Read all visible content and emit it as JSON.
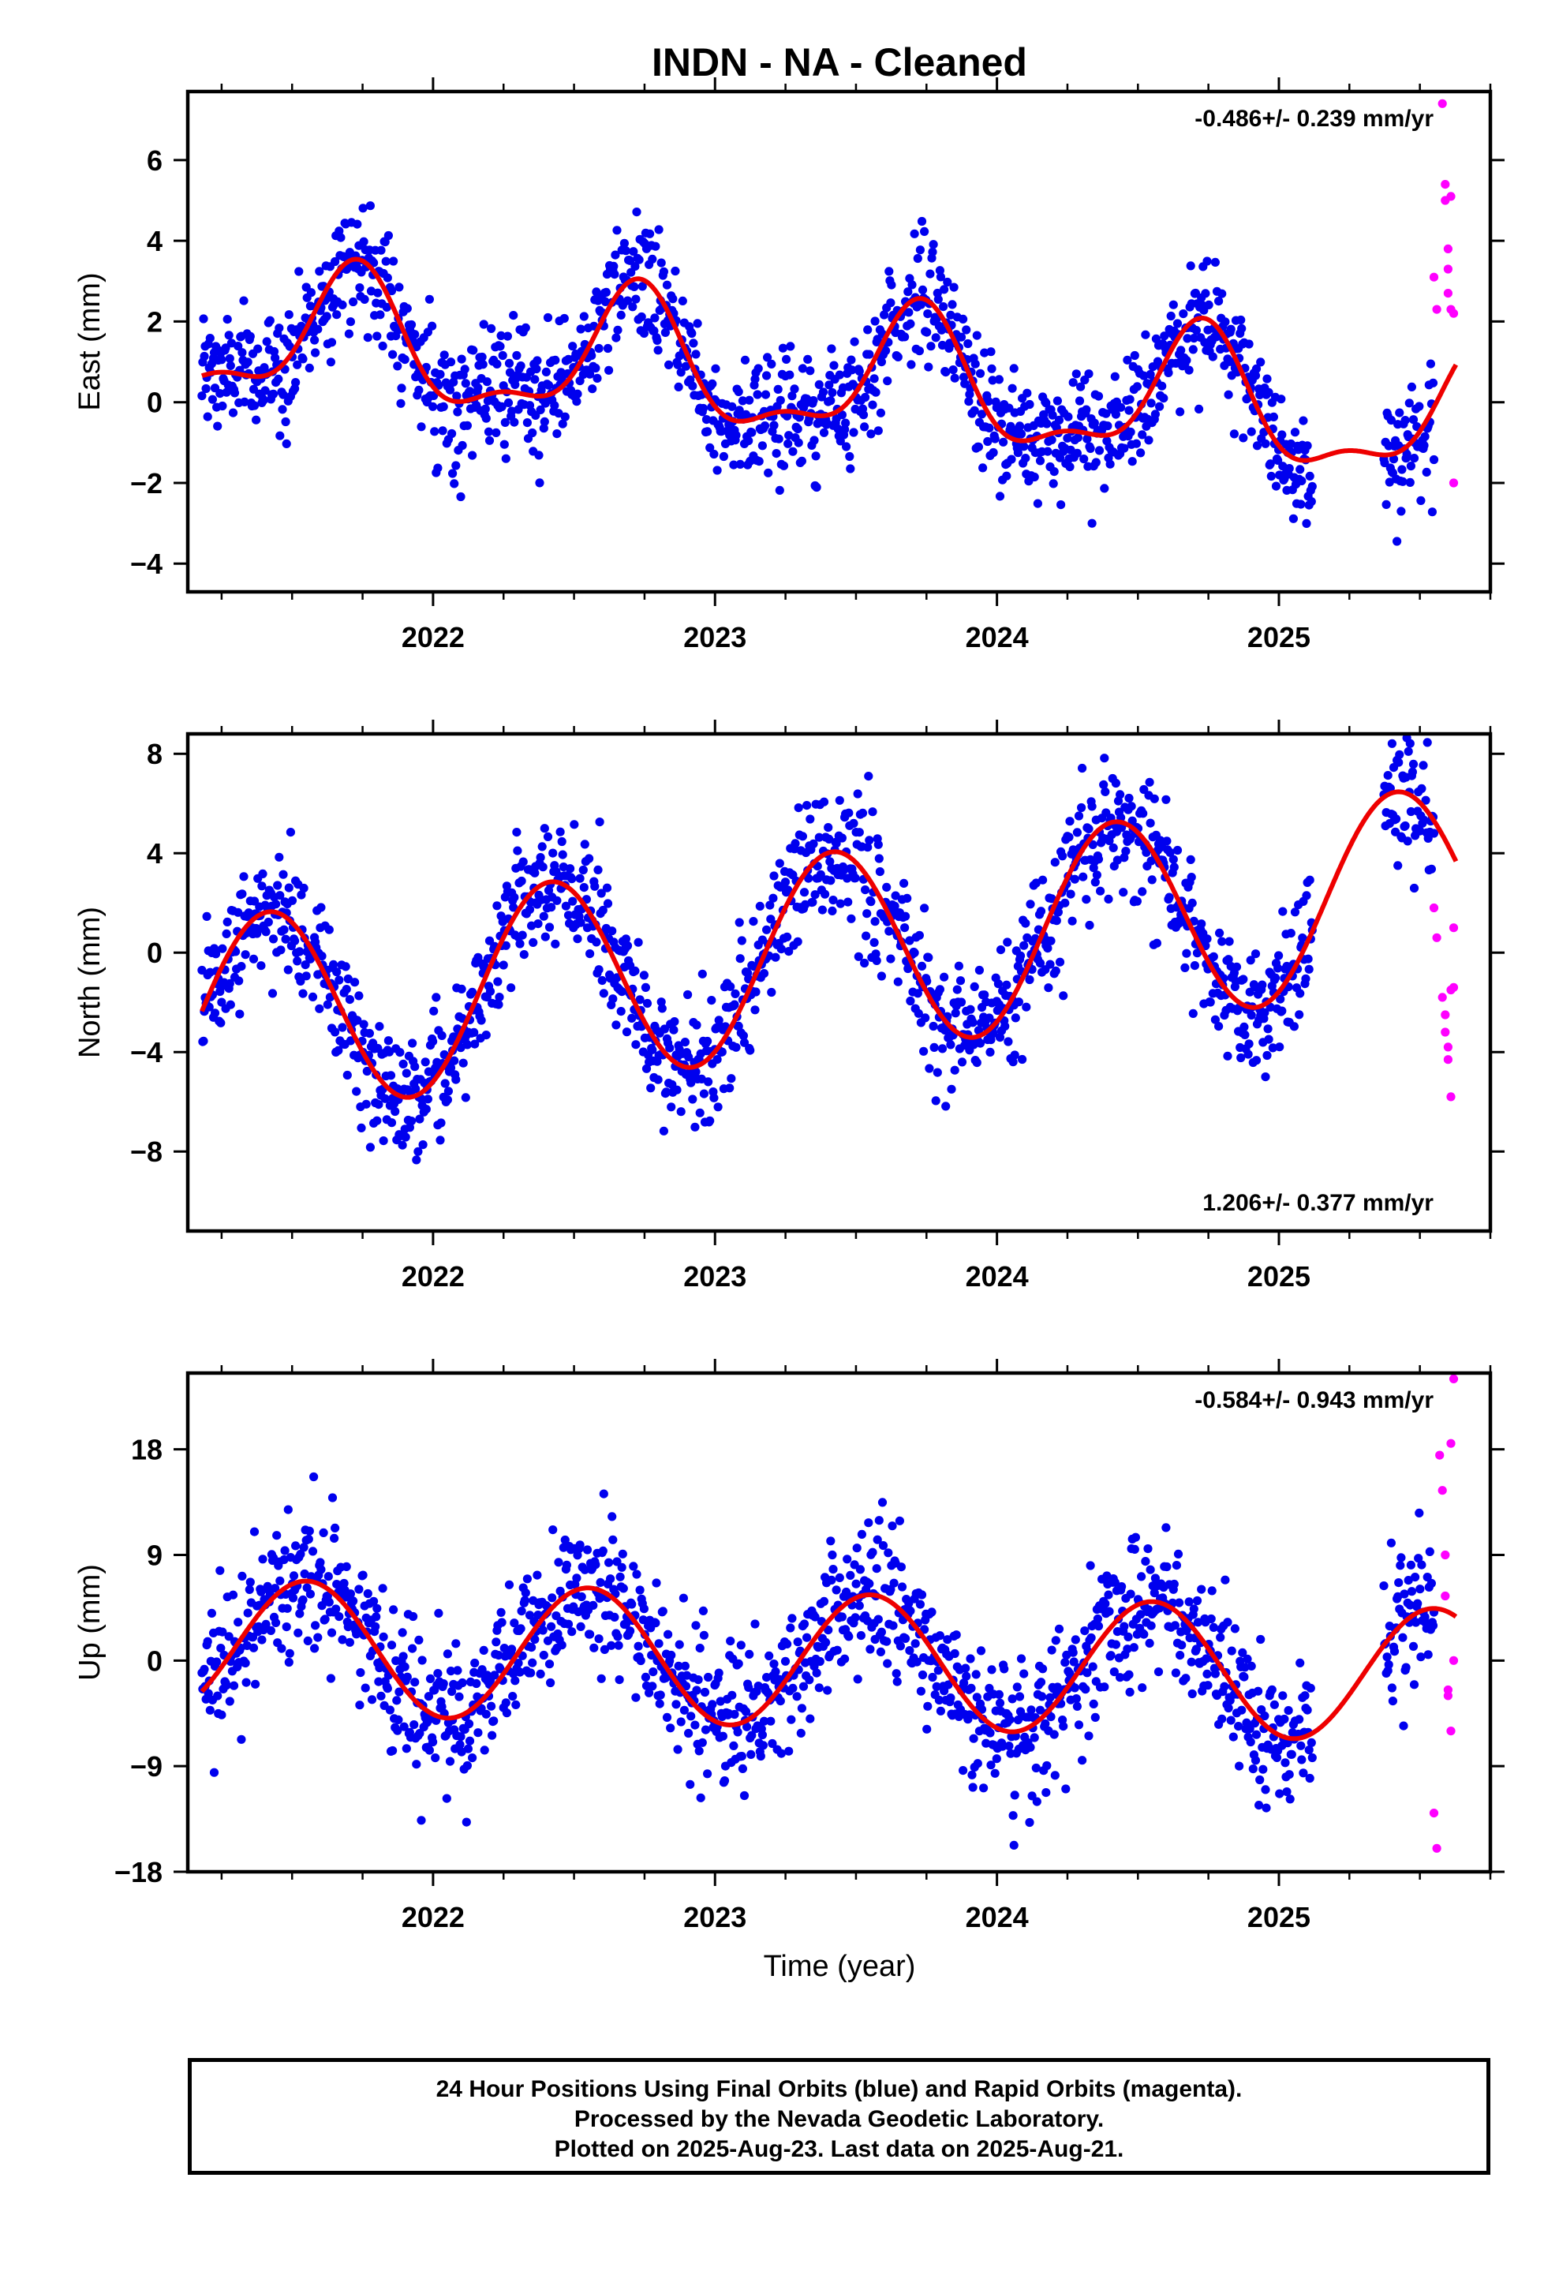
{
  "title": "INDN  - NA - Cleaned",
  "x_axis_title": "Time (year)",
  "caption": {
    "line1": "24 Hour Positions Using Final Orbits (blue) and Rapid Orbits (magenta).",
    "line2": "Processed by the Nevada Geodetic Laboratory.",
    "line3": "Plotted on 2025-Aug-23. Last data on 2025-Aug-21."
  },
  "colors": {
    "final_orbits": "#0000ee",
    "rapid_orbits": "#ff00ff",
    "model_fit": "#ee0000",
    "axes": "#000000"
  },
  "chart_data": [
    {
      "type": "scatter",
      "component": "East",
      "ylabel": "East (mm)",
      "rate_label": "-0.486+/- 0.239 mm/yr",
      "rate_label_position": "top-right",
      "xlim": [
        2021.13,
        2025.75
      ],
      "ylim": [
        -4.7,
        7.7
      ],
      "xticks": [
        2022,
        2023,
        2024,
        2025
      ],
      "xtick_labels": [
        "2022",
        "2023",
        "2024",
        "2025"
      ],
      "yticks": [
        -4,
        -2,
        0,
        2,
        4,
        6
      ],
      "ytick_labels": [
        "−4",
        "−2",
        "0",
        "2",
        "4",
        "6"
      ],
      "grid": false,
      "model": {
        "offset": 0.6,
        "trend": -0.486,
        "t0": 2023.4,
        "annual_cos": -0.3,
        "annual_sin": -1.5,
        "semiannual_cos": -0.6,
        "semiannual_sin": 0.1
      },
      "scatter_sd": 0.75,
      "series": [
        {
          "label": "Final orbits",
          "color": "#0000ee",
          "x_range": [
            2021.18,
            2025.55
          ],
          "n_points": 1500
        },
        {
          "label": "Rapid orbits",
          "color": "#ff00ff",
          "x": [
            2025.55,
            2025.56,
            2025.58,
            2025.59,
            2025.59,
            2025.6,
            2025.6,
            2025.6,
            2025.61,
            2025.61,
            2025.62,
            2025.62
          ],
          "y": [
            3.1,
            2.3,
            7.4,
            5.4,
            5.0,
            3.8,
            3.3,
            2.7,
            2.3,
            5.1,
            2.2,
            -2.0
          ]
        },
        {
          "label": "Model fit",
          "color": "#ee0000",
          "x_range": [
            2021.18,
            2025.63
          ]
        }
      ]
    },
    {
      "type": "scatter",
      "component": "North",
      "ylabel": "North (mm)",
      "rate_label": "1.206+/- 0.377 mm/yr",
      "rate_label_position": "bottom-right",
      "xlim": [
        2021.13,
        2025.75
      ],
      "ylim": [
        -11.2,
        8.8
      ],
      "xticks": [
        2022,
        2023,
        2024,
        2025
      ],
      "xtick_labels": [
        "2022",
        "2023",
        "2024",
        "2025"
      ],
      "yticks": [
        -8,
        -4,
        0,
        4,
        8
      ],
      "ytick_labels": [
        "−8",
        "−4",
        "0",
        "4",
        "8"
      ],
      "grid": false,
      "model": {
        "offset": 0.0,
        "trend": 1.206,
        "t0": 2023.4,
        "annual_cos": -3.5,
        "annual_sin": 2.0,
        "semiannual_cos": 0.0,
        "semiannual_sin": 0.0
      },
      "scatter_sd": 1.3,
      "series": [
        {
          "label": "Final orbits",
          "color": "#0000ee",
          "x_range": [
            2021.18,
            2025.55
          ],
          "n_points": 1500
        },
        {
          "label": "Rapid orbits",
          "color": "#ff00ff",
          "x": [
            2025.55,
            2025.56,
            2025.58,
            2025.59,
            2025.59,
            2025.6,
            2025.6,
            2025.61,
            2025.61,
            2025.62,
            2025.62
          ],
          "y": [
            1.8,
            0.6,
            -1.8,
            -2.5,
            -3.2,
            -3.8,
            -4.3,
            -1.5,
            -5.8,
            1.0,
            -1.4
          ]
        },
        {
          "label": "Model fit",
          "color": "#ee0000",
          "x_range": [
            2021.18,
            2025.63
          ]
        }
      ]
    },
    {
      "type": "scatter",
      "component": "Up",
      "ylabel": "Up (mm)",
      "rate_label": "-0.584+/- 0.943 mm/yr",
      "rate_label_position": "top-right",
      "xlim": [
        2021.13,
        2025.75
      ],
      "ylim": [
        -18,
        24.5
      ],
      "xticks": [
        2022,
        2023,
        2024,
        2025
      ],
      "xtick_labels": [
        "2022",
        "2023",
        "2024",
        "2025"
      ],
      "yticks": [
        -18,
        -9,
        0,
        9,
        18
      ],
      "ytick_labels": [
        "−18",
        "−9",
        "0",
        "9",
        "18"
      ],
      "grid": false,
      "model": {
        "offset": 0.0,
        "trend": -0.584,
        "t0": 2023.4,
        "annual_cos": -5.4,
        "annual_sin": -1.8,
        "semiannual_cos": 0.0,
        "semiannual_sin": 0.0
      },
      "scatter_sd": 3.0,
      "series": [
        {
          "label": "Final orbits",
          "color": "#0000ee",
          "x_range": [
            2021.18,
            2025.55
          ],
          "n_points": 1500
        },
        {
          "label": "Rapid orbits",
          "color": "#ff00ff",
          "x": [
            2025.55,
            2025.56,
            2025.57,
            2025.58,
            2025.59,
            2025.59,
            2025.6,
            2025.6,
            2025.61,
            2025.61,
            2025.62,
            2025.62
          ],
          "y": [
            -13.0,
            -16.0,
            17.5,
            14.5,
            9.0,
            5.5,
            -2.5,
            -3.0,
            -6.0,
            18.5,
            24.0,
            0.0
          ]
        },
        {
          "label": "Model fit",
          "color": "#ee0000",
          "x_range": [
            2021.18,
            2025.63
          ]
        }
      ]
    }
  ]
}
